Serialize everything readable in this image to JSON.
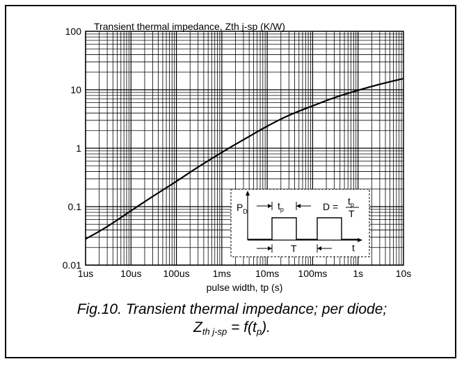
{
  "chart_data": {
    "type": "line",
    "title": "Transient thermal impedance, Zth j-sp (K/W)",
    "xlabel": "pulse width, tp (s)",
    "xscale": "log",
    "yscale": "log",
    "xlim": [
      1e-06,
      10
    ],
    "ylim": [
      0.01,
      100
    ],
    "grid": true,
    "x_ticks": [
      {
        "value": 1e-06,
        "label": "1us"
      },
      {
        "value": 1e-05,
        "label": "10us"
      },
      {
        "value": 0.0001,
        "label": "100us"
      },
      {
        "value": 0.001,
        "label": "1ms"
      },
      {
        "value": 0.01,
        "label": "10ms"
      },
      {
        "value": 0.1,
        "label": "100ms"
      },
      {
        "value": 1,
        "label": "1s"
      },
      {
        "value": 10,
        "label": "10s"
      }
    ],
    "y_ticks": [
      {
        "value": 0.01,
        "label": "0.01"
      },
      {
        "value": 0.1,
        "label": "0.1"
      },
      {
        "value": 1,
        "label": "1"
      },
      {
        "value": 10,
        "label": "10"
      },
      {
        "value": 100,
        "label": "100"
      }
    ],
    "series": [
      {
        "x": [
          1e-06,
          3e-06,
          1e-05,
          3e-05,
          0.0001,
          0.0003,
          0.001,
          0.003,
          0.01,
          0.03,
          0.1,
          0.3,
          1,
          3,
          10
        ],
        "y": [
          0.028,
          0.045,
          0.085,
          0.15,
          0.27,
          0.48,
          0.85,
          1.4,
          2.4,
          3.7,
          5.3,
          7.4,
          9.8,
          12.5,
          15.5
        ]
      }
    ],
    "inset": {
      "pd_main": "P",
      "pd_sub": "D",
      "tp_main": "t",
      "tp_sub": "p",
      "d_label": "D =",
      "frac_num_main": "t",
      "frac_num_sub": "p",
      "frac_den": "T",
      "t_axis": "t",
      "period": "T"
    }
  },
  "caption": {
    "line1": "Fig.10.   Transient thermal impedance; per diode;",
    "z": "Z",
    "z_sub": "th j-sp",
    "eq": " = f(t",
    "t_sub": "p",
    "close": ")."
  },
  "colors": {
    "line": "#000000",
    "grid": "#000000",
    "background": "#ffffff"
  }
}
